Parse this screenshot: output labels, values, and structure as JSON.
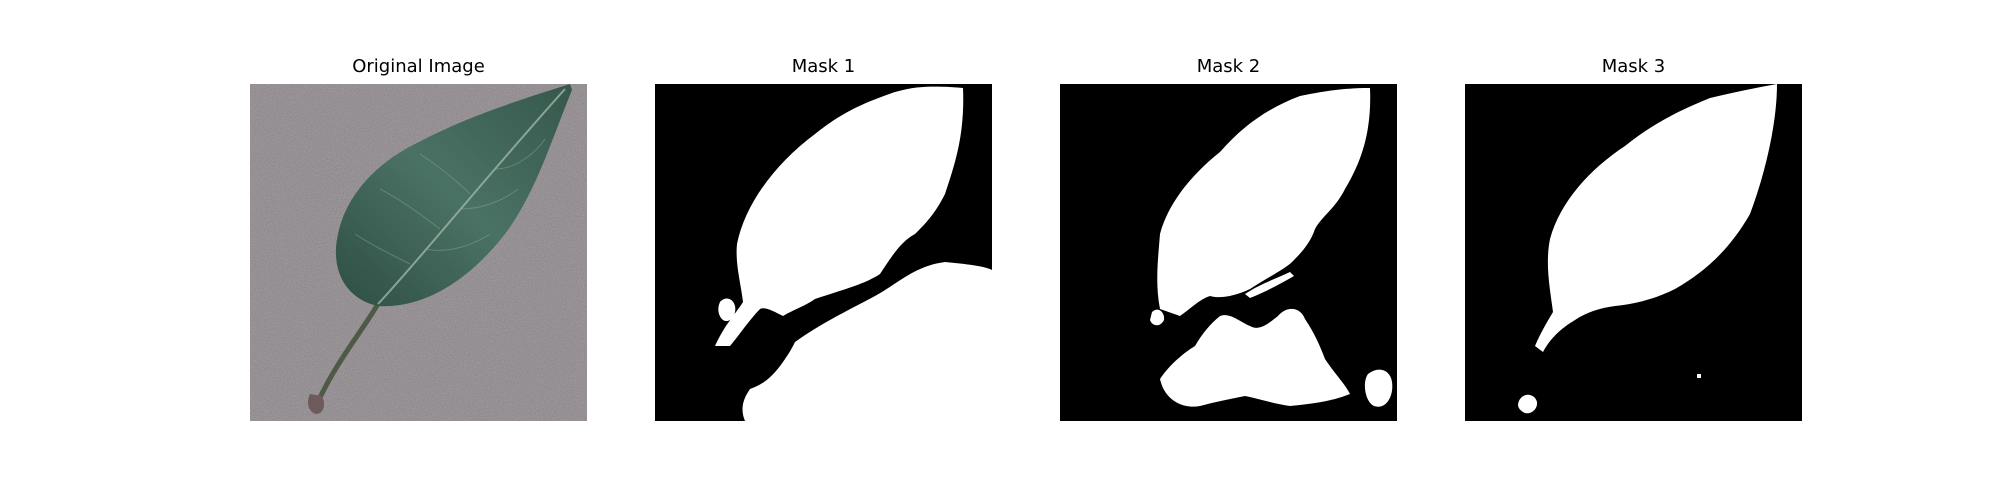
{
  "figure": {
    "panels": [
      {
        "title": "Original Image",
        "content": "leaf photo on gray textured background"
      },
      {
        "title": "Mask 1",
        "content": "binary segmentation mask"
      },
      {
        "title": "Mask 2",
        "content": "binary segmentation mask"
      },
      {
        "title": "Mask 3",
        "content": "binary segmentation mask"
      }
    ],
    "colors": {
      "background": "#ffffff",
      "mask_fg": "#ffffff",
      "mask_bg": "#000000",
      "leaf": "#3f6356",
      "ground": "#9a9598"
    }
  }
}
